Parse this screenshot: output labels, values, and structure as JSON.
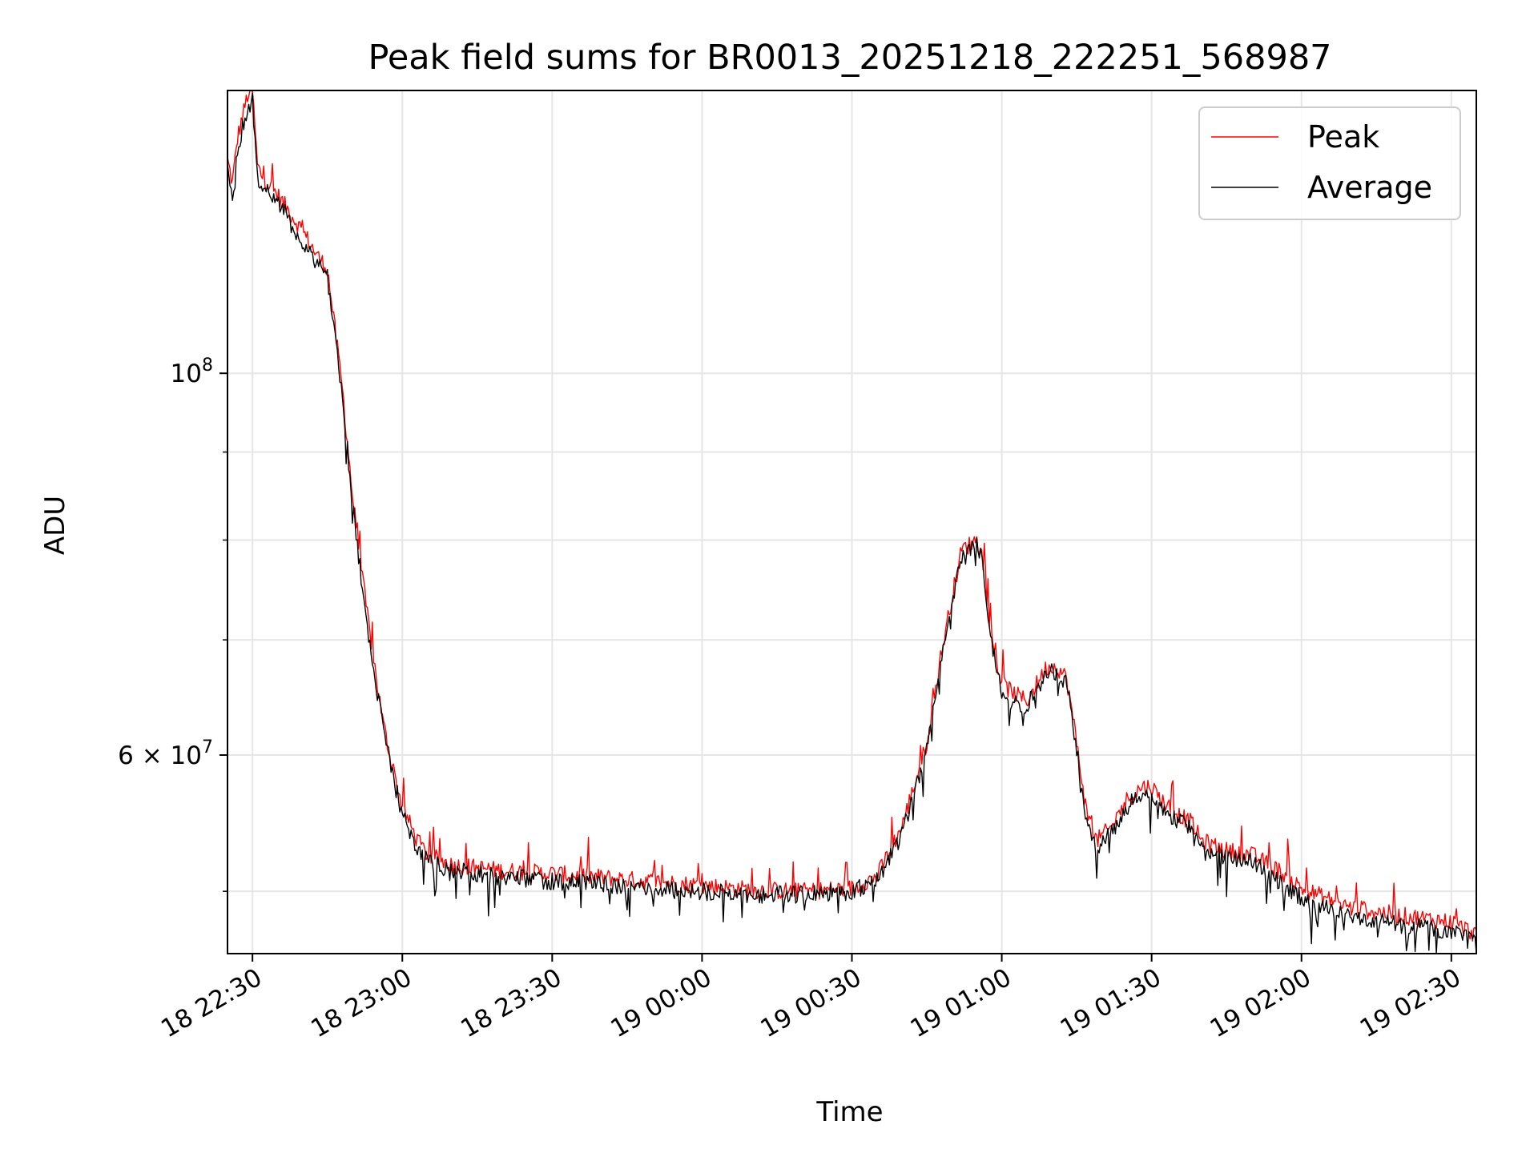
{
  "chart_data": {
    "type": "line",
    "title": "Peak field sums for BR0013_20251218_222251_568987",
    "xlabel": "Time",
    "ylabel": "ADU",
    "yscale": "log",
    "grid": true,
    "legend_position": "top-right",
    "xlim": [
      "18 22:25",
      "19 02:35"
    ],
    "ylim": [
      46000000,
      146000000
    ],
    "x_ticks": [
      "18 22:30",
      "18 23:00",
      "18 23:30",
      "19 00:00",
      "19 00:30",
      "19 01:00",
      "19 01:30",
      "19 02:00",
      "19 02:30"
    ],
    "y_ticks": [
      {
        "value": 100000000,
        "label_base": "10",
        "label_exp": "8"
      },
      {
        "value": 60000000,
        "label_base": "6 × 10",
        "label_exp": "7"
      }
    ],
    "y_minor_ticks": [
      50000000,
      70000000,
      80000000,
      90000000
    ],
    "series": [
      {
        "name": "Peak",
        "color": "#ff0000",
        "noise_up": 1.0,
        "x": [
          "18 22:25",
          "18 22:26",
          "18 22:27",
          "18 22:28",
          "18 22:29",
          "18 22:30",
          "18 22:31",
          "18 22:32",
          "18 22:35",
          "18 22:40",
          "18 22:43",
          "18 22:45",
          "18 22:48",
          "18 22:50",
          "18 22:52",
          "18 22:54",
          "18 22:56",
          "18 22:58",
          "18 23:00",
          "18 23:03",
          "18 23:05",
          "18 23:10",
          "18 23:20",
          "18 23:30",
          "18 23:45",
          "19 00:00",
          "19 00:10",
          "19 00:20",
          "19 00:30",
          "19 00:35",
          "19 00:40",
          "19 00:45",
          "19 00:48",
          "19 00:50",
          "19 00:52",
          "19 00:55",
          "19 00:56",
          "19 00:58",
          "19 01:00",
          "19 01:03",
          "19 01:05",
          "19 01:07",
          "19 01:09",
          "19 01:11",
          "19 01:13",
          "19 01:15",
          "19 01:17",
          "19 01:19",
          "19 01:22",
          "19 01:25",
          "19 01:28",
          "19 01:30",
          "19 01:32",
          "19 01:35",
          "19 01:38",
          "19 01:40",
          "19 01:45",
          "19 01:50",
          "19 01:55",
          "19 02:00",
          "19 02:10",
          "19 02:20",
          "19 02:30",
          "19 02:35"
        ],
        "values": [
          133000000,
          129000000,
          137000000,
          141000000,
          145000000,
          146000000,
          132000000,
          130000000,
          127000000,
          121000000,
          117000000,
          115000000,
          98000000,
          85000000,
          76000000,
          69000000,
          63000000,
          59000000,
          56000000,
          53500000,
          52500000,
          51800000,
          51400000,
          51200000,
          50800000,
          50400000,
          50100000,
          50000000,
          50200000,
          51000000,
          54500000,
          61000000,
          69000000,
          74000000,
          79000000,
          80000000,
          78500000,
          70000000,
          66000000,
          65000000,
          64500000,
          66000000,
          67500000,
          67500000,
          66500000,
          61000000,
          55500000,
          53500000,
          54500000,
          56500000,
          57500000,
          57500000,
          56500000,
          55500000,
          54800000,
          53500000,
          52800000,
          52500000,
          51500000,
          50200000,
          48900000,
          48400000,
          48000000,
          47200000
        ]
      },
      {
        "name": "Average",
        "color": "#000000",
        "noise_up": 0.2,
        "x": [
          "18 22:25",
          "18 22:26",
          "18 22:27",
          "18 22:28",
          "18 22:29",
          "18 22:30",
          "18 22:31",
          "18 22:32",
          "18 22:35",
          "18 22:40",
          "18 22:43",
          "18 22:45",
          "18 22:48",
          "18 22:50",
          "18 22:52",
          "18 22:54",
          "18 22:56",
          "18 22:58",
          "18 23:00",
          "18 23:03",
          "18 23:05",
          "18 23:10",
          "18 23:20",
          "18 23:30",
          "18 23:45",
          "19 00:00",
          "19 00:10",
          "19 00:20",
          "19 00:30",
          "19 00:35",
          "19 00:40",
          "19 00:45",
          "19 00:48",
          "19 00:50",
          "19 00:52",
          "19 00:55",
          "19 00:56",
          "19 00:58",
          "19 01:00",
          "19 01:03",
          "19 01:05",
          "19 01:07",
          "19 01:09",
          "19 01:11",
          "19 01:13",
          "19 01:15",
          "19 01:17",
          "19 01:19",
          "19 01:22",
          "19 01:25",
          "19 01:28",
          "19 01:30",
          "19 01:32",
          "19 01:35",
          "19 01:38",
          "19 01:40",
          "19 01:45",
          "19 01:50",
          "19 01:55",
          "19 02:00",
          "19 02:10",
          "19 02:20",
          "19 02:30",
          "19 02:35"
        ],
        "values": [
          131000000,
          127000000,
          135000000,
          139000000,
          142000000,
          144000000,
          130000000,
          129000000,
          126000000,
          119000000,
          116000000,
          114000000,
          97000000,
          84000000,
          75000000,
          68000000,
          62500000,
          58500000,
          55500000,
          53000000,
          52000000,
          51500000,
          51000000,
          50700000,
          50300000,
          50000000,
          49800000,
          49800000,
          50000000,
          50700000,
          54000000,
          60500000,
          68500000,
          73500000,
          78500000,
          79500000,
          78000000,
          69500000,
          65500000,
          64500000,
          64000000,
          65500000,
          67000000,
          67000000,
          66000000,
          60500000,
          55000000,
          53000000,
          54000000,
          56000000,
          57000000,
          57000000,
          56000000,
          55000000,
          54300000,
          53000000,
          52300000,
          52000000,
          50800000,
          49600000,
          48400000,
          47800000,
          47300000,
          46800000
        ]
      }
    ]
  }
}
